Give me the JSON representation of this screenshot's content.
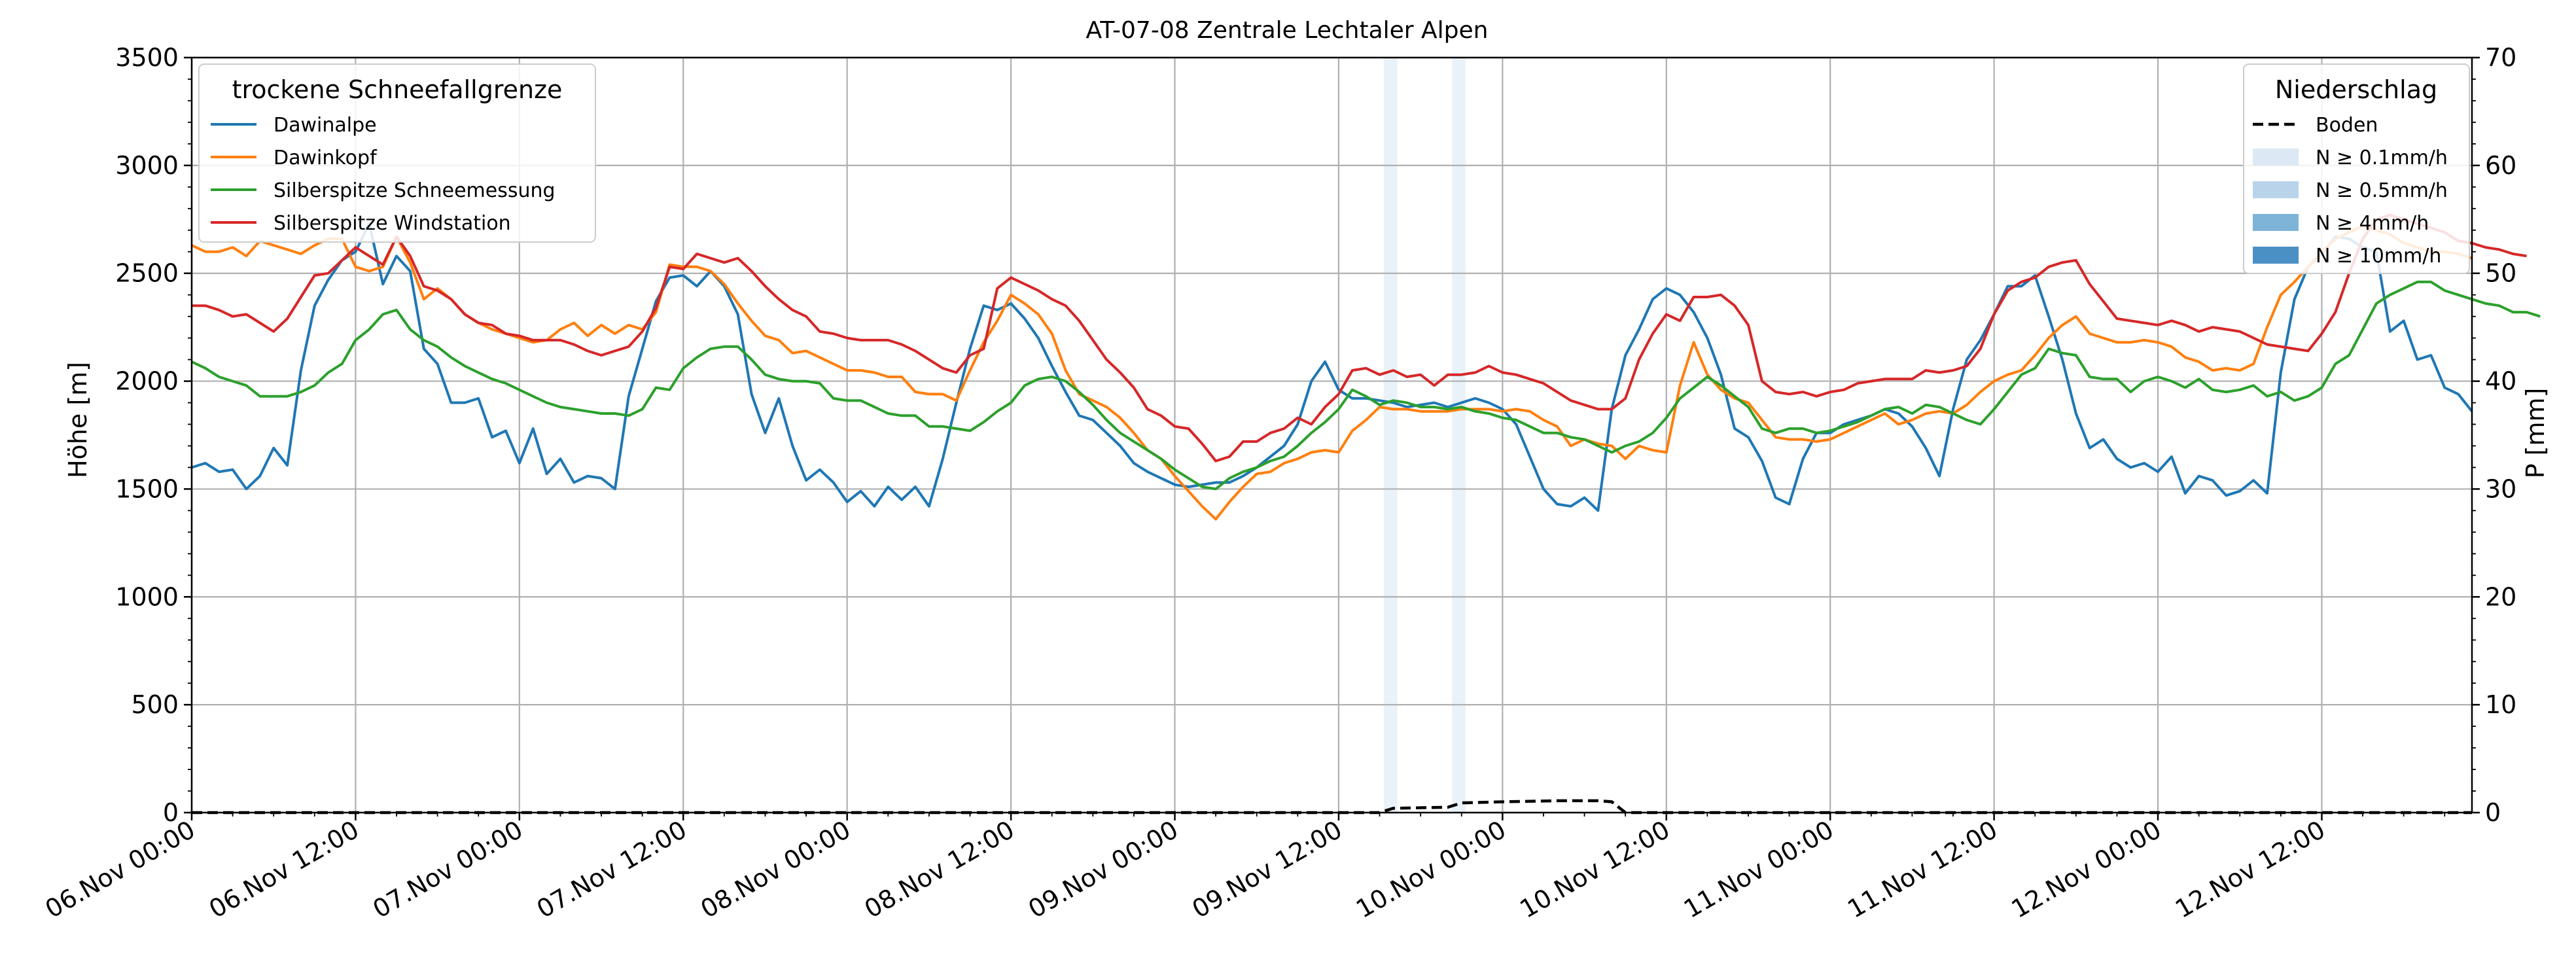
{
  "chart_data": {
    "type": "line",
    "title": "AT-07-08 Zentrale Lechtaler Alpen",
    "ylabel": "Höhe [m]",
    "y2label": "P [mm]",
    "ylim": [
      0,
      3500
    ],
    "y2lim": [
      0,
      70
    ],
    "yticks": [
      "0",
      "500",
      "1000",
      "1500",
      "2000",
      "2500",
      "3000",
      "3500"
    ],
    "y2ticks": [
      "0",
      "10",
      "20",
      "30",
      "40",
      "50",
      "60",
      "70"
    ],
    "xlim_hours": [
      0,
      167
    ],
    "xticks": [
      "06.Nov 00:00",
      "06.Nov 12:00",
      "07.Nov 00:00",
      "07.Nov 12:00",
      "08.Nov 00:00",
      "08.Nov 12:00",
      "09.Nov 00:00",
      "09.Nov 12:00",
      "10.Nov 00:00",
      "10.Nov 12:00",
      "11.Nov 00:00",
      "11.Nov 12:00",
      "12.Nov 00:00",
      "12.Nov 12:00"
    ],
    "grid": true,
    "legend_left": {
      "title": "trockene Schneefallgrenze",
      "placement": "top-left"
    },
    "legend_right": {
      "title": "Niederschlag",
      "placement": "top-right",
      "entries": [
        {
          "label": "Boden",
          "style": "dashed",
          "color": "#000000"
        },
        {
          "label": "N ≥ 0.1mm/h",
          "color": "#dce9f5"
        },
        {
          "label": "N ≥ 0.5mm/h",
          "color": "#b9d4ea"
        },
        {
          "label": "N ≥ 4mm/h",
          "color": "#7db4d8"
        },
        {
          "label": "N ≥ 10mm/h",
          "color": "#4a90c4"
        }
      ]
    },
    "precip_bands": [
      {
        "start": 87.3,
        "end": 88.3,
        "class": "N ≥ 0.1mm/h"
      },
      {
        "start": 92.3,
        "end": 93.3,
        "class": "N ≥ 0.1mm/h"
      }
    ],
    "boden_hours": [
      0,
      87,
      88,
      92,
      93,
      96,
      100,
      103,
      104,
      105,
      167
    ],
    "boden_values": [
      0,
      0,
      0.4,
      0.5,
      0.9,
      1.0,
      1.1,
      1.1,
      1.0,
      0,
      0
    ],
    "series_hours_step": 1,
    "series": [
      {
        "name": "Dawinalpe",
        "color": "#1f77b4",
        "values": [
          1600,
          1620,
          1580,
          1590,
          1500,
          1560,
          1690,
          1610,
          2050,
          2350,
          2470,
          2560,
          2600,
          2730,
          2450,
          2580,
          2510,
          2150,
          2080,
          1900,
          1900,
          1920,
          1740,
          1770,
          1620,
          1780,
          1570,
          1640,
          1530,
          1560,
          1550,
          1500,
          1930,
          2150,
          2370,
          2480,
          2490,
          2440,
          2510,
          2440,
          2310,
          1940,
          1760,
          1920,
          1700,
          1540,
          1590,
          1530,
          1440,
          1490,
          1420,
          1510,
          1450,
          1510,
          1420,
          1640,
          1900,
          2150,
          2350,
          2330,
          2360,
          2290,
          2200,
          2070,
          1950,
          1840,
          1820,
          1760,
          1700,
          1620,
          1580,
          1550,
          1520,
          1510,
          1520,
          1530,
          1530,
          1560,
          1600,
          1650,
          1700,
          1800,
          2000,
          2090,
          1960,
          1920,
          1920,
          1910,
          1900,
          1880,
          1890,
          1900,
          1880,
          1900,
          1920,
          1900,
          1870,
          1800,
          1650,
          1500,
          1430,
          1420,
          1460,
          1400,
          1870,
          2120,
          2240,
          2380,
          2430,
          2400,
          2320,
          2200,
          2030,
          1780,
          1740,
          1630,
          1460,
          1430,
          1640,
          1760,
          1760,
          1800,
          1820,
          1840,
          1870,
          1850,
          1790,
          1690,
          1560,
          1870,
          2100,
          2190,
          2310,
          2440,
          2440,
          2490,
          2300,
          2100,
          1850,
          1690,
          1730,
          1640,
          1600,
          1620,
          1580,
          1650,
          1480,
          1560,
          1540,
          1470,
          1490,
          1540,
          1480,
          2040,
          2380,
          2530,
          2590,
          2670,
          2660,
          2620,
          2600,
          2230,
          2280,
          2100,
          2120,
          1970,
          1940,
          1860
        ]
      },
      {
        "name": "Dawinkopf",
        "color": "#ff7f0e",
        "values": [
          2630,
          2600,
          2600,
          2620,
          2580,
          2650,
          2630,
          2610,
          2590,
          2630,
          2660,
          2660,
          2530,
          2510,
          2530,
          2670,
          2550,
          2380,
          2430,
          2380,
          2310,
          2270,
          2240,
          2220,
          2200,
          2180,
          2190,
          2240,
          2270,
          2210,
          2260,
          2220,
          2260,
          2240,
          2320,
          2540,
          2530,
          2530,
          2510,
          2450,
          2360,
          2280,
          2210,
          2190,
          2130,
          2140,
          2110,
          2080,
          2050,
          2050,
          2040,
          2020,
          2020,
          1950,
          1940,
          1940,
          1910,
          2050,
          2180,
          2280,
          2400,
          2360,
          2310,
          2220,
          2050,
          1940,
          1910,
          1880,
          1830,
          1760,
          1680,
          1640,
          1560,
          1490,
          1420,
          1360,
          1440,
          1510,
          1570,
          1580,
          1620,
          1640,
          1670,
          1680,
          1670,
          1770,
          1820,
          1880,
          1870,
          1870,
          1860,
          1860,
          1860,
          1870,
          1870,
          1870,
          1860,
          1870,
          1860,
          1820,
          1790,
          1700,
          1730,
          1710,
          1700,
          1640,
          1700,
          1680,
          1670,
          1980,
          2180,
          2030,
          1960,
          1920,
          1900,
          1820,
          1740,
          1730,
          1730,
          1720,
          1730,
          1760,
          1790,
          1820,
          1850,
          1800,
          1820,
          1850,
          1860,
          1850,
          1890,
          1950,
          2000,
          2030,
          2050,
          2120,
          2200,
          2260,
          2300,
          2220,
          2200,
          2180,
          2180,
          2190,
          2180,
          2160,
          2110,
          2090,
          2050,
          2060,
          2050,
          2080,
          2250,
          2400,
          2460,
          2530,
          2600,
          2660,
          2690,
          2720,
          2700,
          2680,
          2640,
          2620,
          2600,
          2600,
          2590,
          2570
        ]
      },
      {
        "name": "Silberspitze Schneemessung",
        "color": "#2ca02c",
        "values": [
          2090,
          2060,
          2020,
          2000,
          1980,
          1930,
          1930,
          1930,
          1950,
          1980,
          2040,
          2080,
          2190,
          2240,
          2310,
          2330,
          2240,
          2190,
          2160,
          2110,
          2070,
          2040,
          2010,
          1990,
          1960,
          1930,
          1900,
          1880,
          1870,
          1860,
          1850,
          1850,
          1840,
          1870,
          1970,
          1960,
          2060,
          2110,
          2150,
          2160,
          2160,
          2100,
          2030,
          2010,
          2000,
          2000,
          1990,
          1920,
          1910,
          1910,
          1880,
          1850,
          1840,
          1840,
          1790,
          1790,
          1780,
          1770,
          1810,
          1860,
          1900,
          1980,
          2010,
          2020,
          2000,
          1950,
          1890,
          1820,
          1760,
          1720,
          1680,
          1640,
          1590,
          1550,
          1510,
          1500,
          1550,
          1580,
          1600,
          1630,
          1650,
          1700,
          1760,
          1810,
          1870,
          1960,
          1930,
          1890,
          1910,
          1900,
          1880,
          1880,
          1870,
          1880,
          1860,
          1850,
          1830,
          1820,
          1790,
          1760,
          1760,
          1740,
          1730,
          1700,
          1670,
          1700,
          1720,
          1760,
          1830,
          1920,
          1970,
          2020,
          1980,
          1930,
          1880,
          1780,
          1760,
          1780,
          1780,
          1760,
          1770,
          1790,
          1810,
          1840,
          1870,
          1880,
          1850,
          1890,
          1880,
          1850,
          1820,
          1800,
          1870,
          1950,
          2030,
          2060,
          2150,
          2130,
          2120,
          2020,
          2010,
          2010,
          1950,
          2000,
          2020,
          2000,
          1970,
          2010,
          1960,
          1950,
          1960,
          1980,
          1930,
          1950,
          1910,
          1930,
          1970,
          2080,
          2120,
          2240,
          2360,
          2400,
          2430,
          2460,
          2460,
          2420,
          2400,
          2380,
          2360,
          2350,
          2320,
          2320,
          2300
        ]
      },
      {
        "name": "Silberspitze Windstation",
        "color": "#d62728",
        "values": [
          2350,
          2350,
          2330,
          2300,
          2310,
          2270,
          2230,
          2290,
          2390,
          2490,
          2500,
          2560,
          2620,
          2580,
          2540,
          2670,
          2580,
          2440,
          2420,
          2380,
          2310,
          2270,
          2260,
          2220,
          2210,
          2190,
          2190,
          2190,
          2170,
          2140,
          2120,
          2140,
          2160,
          2230,
          2340,
          2530,
          2520,
          2590,
          2570,
          2550,
          2570,
          2510,
          2440,
          2380,
          2330,
          2300,
          2230,
          2220,
          2200,
          2190,
          2190,
          2190,
          2170,
          2140,
          2100,
          2060,
          2040,
          2120,
          2150,
          2430,
          2480,
          2450,
          2420,
          2380,
          2350,
          2280,
          2190,
          2100,
          2040,
          1970,
          1870,
          1840,
          1790,
          1780,
          1710,
          1630,
          1650,
          1720,
          1720,
          1760,
          1780,
          1830,
          1800,
          1880,
          1940,
          2050,
          2060,
          2030,
          2050,
          2020,
          2030,
          1980,
          2030,
          2030,
          2040,
          2070,
          2040,
          2030,
          2010,
          1990,
          1950,
          1910,
          1890,
          1870,
          1870,
          1920,
          2100,
          2220,
          2310,
          2280,
          2390,
          2390,
          2400,
          2350,
          2260,
          2000,
          1950,
          1940,
          1950,
          1930,
          1950,
          1960,
          1990,
          2000,
          2010,
          2010,
          2010,
          2050,
          2040,
          2050,
          2070,
          2150,
          2310,
          2420,
          2460,
          2480,
          2530,
          2550,
          2560,
          2450,
          2370,
          2290,
          2280,
          2270,
          2260,
          2280,
          2260,
          2230,
          2250,
          2240,
          2230,
          2200,
          2170,
          2160,
          2150,
          2140,
          2220,
          2320,
          2500,
          2660,
          2750,
          2770,
          2750,
          2730,
          2710,
          2690,
          2650,
          2640,
          2620,
          2610,
          2590,
          2580
        ]
      }
    ]
  }
}
